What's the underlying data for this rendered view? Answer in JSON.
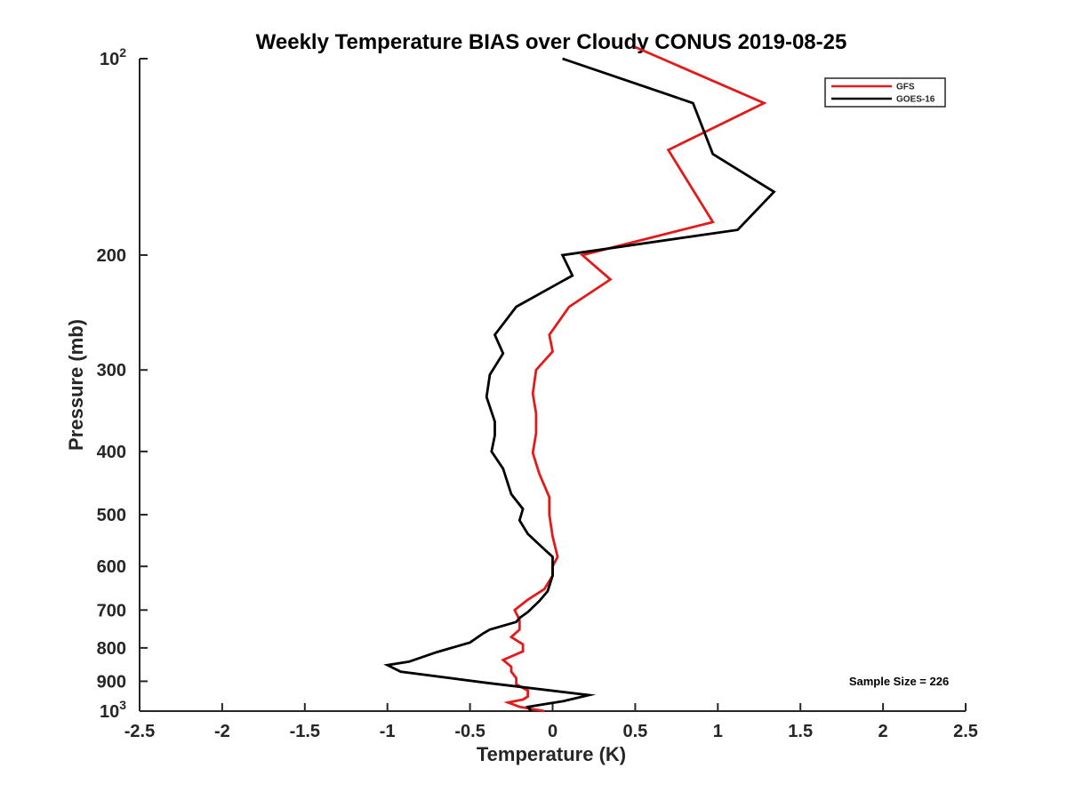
{
  "chart_data": {
    "type": "line",
    "title": "Weekly Temperature BIAS over Cloudy CONUS 2019-08-25",
    "xlabel": "Temperature (K)",
    "ylabel": "Pressure (mb)",
    "xlim": [
      -2.5,
      2.5
    ],
    "ylim": [
      100,
      1000
    ],
    "y_scale": "log",
    "y_reversed": true,
    "x_ticks": [
      "-2.5",
      "-2",
      "-1.5",
      "-1",
      "-0.5",
      "0",
      "0.5",
      "1",
      "1.5",
      "2",
      "2.5"
    ],
    "y_ticks": [
      {
        "value": 100,
        "base": "10",
        "exp": "2"
      },
      {
        "value": 200,
        "label": "200"
      },
      {
        "value": 300,
        "label": "300"
      },
      {
        "value": 400,
        "label": "400"
      },
      {
        "value": 500,
        "label": "500"
      },
      {
        "value": 600,
        "label": "600"
      },
      {
        "value": 700,
        "label": "700"
      },
      {
        "value": 800,
        "label": "800"
      },
      {
        "value": 900,
        "label": "900"
      },
      {
        "value": 1000,
        "base": "10",
        "exp": "3"
      }
    ],
    "legend_position": "top-right",
    "grid": false,
    "annotation": "Sample Size = 226",
    "series": [
      {
        "name": "GFS",
        "color": "#e41a1a",
        "points": [
          [
            0.5,
            96
          ],
          [
            1.28,
            117
          ],
          [
            0.7,
            138
          ],
          [
            0.97,
            178
          ],
          [
            0.18,
            200
          ],
          [
            0.35,
            218
          ],
          [
            0.1,
            240
          ],
          [
            -0.02,
            265
          ],
          [
            0.0,
            281
          ],
          [
            -0.1,
            300
          ],
          [
            -0.12,
            326
          ],
          [
            -0.1,
            350
          ],
          [
            -0.1,
            375
          ],
          [
            -0.12,
            402
          ],
          [
            -0.08,
            433
          ],
          [
            -0.02,
            470
          ],
          [
            -0.02,
            500
          ],
          [
            0.0,
            540
          ],
          [
            0.03,
            580
          ],
          [
            0.0,
            600
          ],
          [
            0.0,
            620
          ],
          [
            -0.05,
            650
          ],
          [
            -0.15,
            675
          ],
          [
            -0.23,
            700
          ],
          [
            -0.2,
            725
          ],
          [
            -0.2,
            750
          ],
          [
            -0.25,
            770
          ],
          [
            -0.18,
            790
          ],
          [
            -0.18,
            810
          ],
          [
            -0.3,
            835
          ],
          [
            -0.25,
            855
          ],
          [
            -0.25,
            870
          ],
          [
            -0.22,
            890
          ],
          [
            -0.22,
            910
          ],
          [
            -0.15,
            930
          ],
          [
            -0.15,
            950
          ],
          [
            -0.18,
            960
          ],
          [
            -0.27,
            970
          ],
          [
            -0.2,
            985
          ],
          [
            -0.05,
            1000
          ]
        ]
      },
      {
        "name": "GOES-16",
        "color": "#000000",
        "points": [
          [
            0.06,
            100
          ],
          [
            0.85,
            117
          ],
          [
            0.97,
            140
          ],
          [
            1.34,
            160
          ],
          [
            1.12,
            183
          ],
          [
            0.06,
            200
          ],
          [
            0.12,
            215
          ],
          [
            -0.22,
            240
          ],
          [
            -0.35,
            265
          ],
          [
            -0.3,
            283
          ],
          [
            -0.38,
            305
          ],
          [
            -0.4,
            330
          ],
          [
            -0.35,
            360
          ],
          [
            -0.35,
            378
          ],
          [
            -0.37,
            400
          ],
          [
            -0.3,
            425
          ],
          [
            -0.25,
            465
          ],
          [
            -0.18,
            490
          ],
          [
            -0.2,
            510
          ],
          [
            -0.15,
            535
          ],
          [
            -0.05,
            565
          ],
          [
            0.0,
            580
          ],
          [
            0.0,
            620
          ],
          [
            -0.03,
            655
          ],
          [
            -0.08,
            678
          ],
          [
            -0.15,
            705
          ],
          [
            -0.2,
            720
          ],
          [
            -0.22,
            730
          ],
          [
            -0.38,
            750
          ],
          [
            -0.42,
            760
          ],
          [
            -0.5,
            785
          ],
          [
            -0.7,
            812
          ],
          [
            -0.87,
            840
          ],
          [
            -1.0,
            850
          ],
          [
            -0.92,
            870
          ],
          [
            -0.4,
            905
          ],
          [
            0.22,
            945
          ],
          [
            0.07,
            965
          ],
          [
            -0.15,
            985
          ],
          [
            -0.13,
            1000
          ]
        ]
      }
    ]
  }
}
